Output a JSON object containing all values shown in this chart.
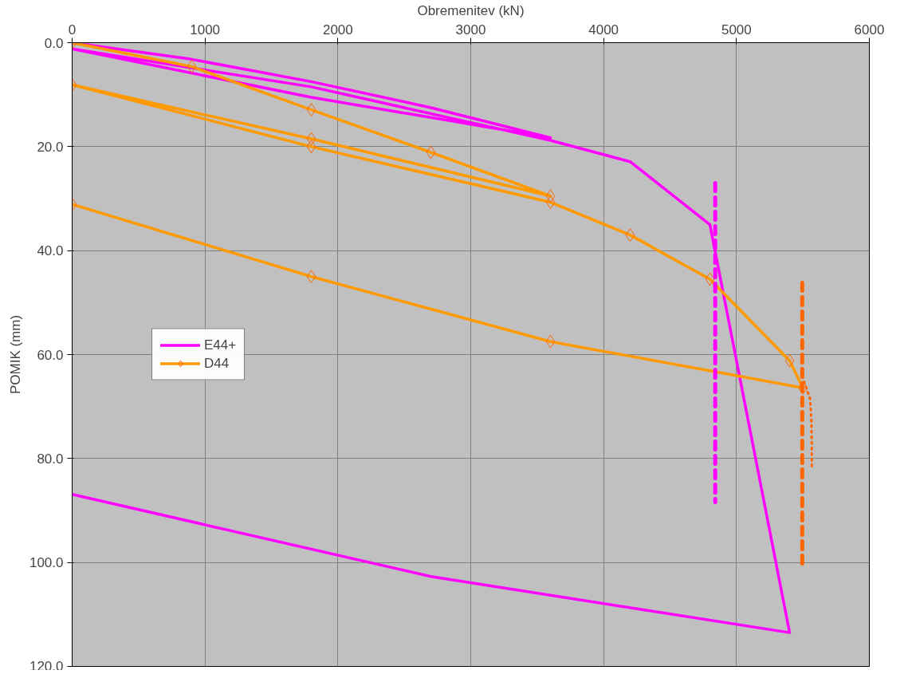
{
  "chart_data": {
    "type": "line",
    "xlabel": "Obremenitev (kN)",
    "ylabel": "POMIK (mm)",
    "xlim": [
      0,
      6000
    ],
    "xticks": [
      0,
      1000,
      2000,
      3000,
      4000,
      5000,
      6000
    ],
    "ylim": [
      120,
      0
    ],
    "yticks": [
      {
        "value": 0,
        "label": "0.0"
      },
      {
        "value": 20,
        "label": "20.0"
      },
      {
        "value": 40,
        "label": "40.0"
      },
      {
        "value": 60,
        "label": "60.0"
      },
      {
        "value": 80,
        "label": "80.0"
      },
      {
        "value": 100,
        "label": "100.0"
      },
      {
        "value": 120,
        "label": "120.0"
      }
    ],
    "grid": true,
    "legend": "left",
    "series": [
      {
        "name": "E44+",
        "color": "#ff00ff",
        "line_style": "solid",
        "marker": "none",
        "x": [
          0,
          900,
          1800,
          2700,
          3600,
          1800,
          0,
          1800,
          3600,
          4200,
          4800,
          5400,
          2700,
          0
        ],
        "values": [
          0,
          3.2,
          7.5,
          12.5,
          18.3,
          10.5,
          1.2,
          8.5,
          18.8,
          22.9,
          35,
          113.5,
          102.7,
          86.9
        ]
      },
      {
        "name": "D44",
        "color": "#ff9900",
        "line_style": "solid",
        "marker": "diamond",
        "x": [
          0,
          900,
          1800,
          2700,
          3600,
          1800,
          0,
          1800,
          3600,
          4200,
          4800,
          5400,
          5500,
          3600,
          1800,
          0
        ],
        "values": [
          0,
          4.6,
          12.9,
          21.1,
          29.5,
          18.5,
          8.1,
          20,
          30.7,
          37,
          45.5,
          61.2,
          66.4,
          57.5,
          45,
          31.1
        ]
      },
      {
        "color": "#ff00ff",
        "line_style": "dashed",
        "marker": "none",
        "x": [
          4840,
          4840
        ],
        "values": [
          27,
          88.4
        ]
      },
      {
        "color": "#ff6600",
        "line_style": "dashed",
        "marker": "none",
        "x": [
          5495,
          5495
        ],
        "values": [
          46.2,
          100.5
        ]
      },
      {
        "color": "#ff6600",
        "line_style": "dotted",
        "marker": "none",
        "x": [
          5495,
          5554,
          5564,
          5567,
          5567
        ],
        "values": [
          64.2,
          68.5,
          72.8,
          77.7,
          82
        ]
      }
    ]
  }
}
